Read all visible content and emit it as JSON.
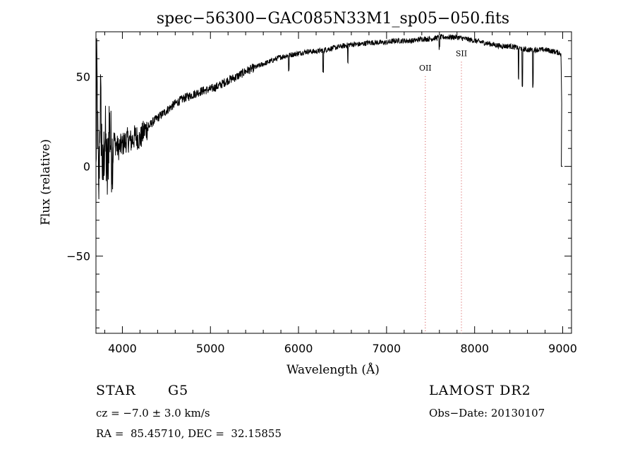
{
  "chart_data": {
    "type": "line",
    "title": "spec−56300−GAC085N33M1_sp05−050.fits",
    "xlabel": "Wavelength (Å)",
    "ylabel": "Flux (relative)",
    "xlim": [
      3700,
      9100
    ],
    "ylim": [
      -93,
      75
    ],
    "x_ticks": [
      4000,
      5000,
      6000,
      7000,
      8000,
      9000
    ],
    "x_tick_labels": [
      "4000",
      "5000",
      "6000",
      "7000",
      "8000",
      "9000"
    ],
    "y_ticks": [
      -50,
      0,
      50
    ],
    "y_tick_labels": [
      "−50",
      "0",
      "50"
    ],
    "grid": false,
    "legend": "none",
    "series": [
      {
        "x": [
          3700,
          3710,
          3730,
          3750,
          3780,
          3800,
          3830,
          3850,
          3880,
          3900,
          3950,
          4000,
          4050,
          4100,
          4150,
          4200,
          4250,
          4300,
          4350,
          4400,
          4500,
          4600,
          4700,
          4800,
          4900,
          5000,
          5100,
          5200,
          5300,
          5400,
          5500,
          5600,
          5700,
          5800,
          5900,
          6000,
          6100,
          6200,
          6300,
          6400,
          6500,
          6600,
          6700,
          6800,
          6900,
          7000,
          7100,
          7200,
          7300,
          7400,
          7500,
          7600,
          7700,
          7800,
          7900,
          8000,
          8100,
          8200,
          8300,
          8400,
          8500,
          8600,
          8700,
          8800,
          8900,
          8980,
          9000
        ],
        "y": [
          -5,
          55,
          -20,
          40,
          -10,
          20,
          -8,
          25,
          5,
          15,
          10,
          12,
          15,
          14,
          17,
          15,
          20,
          22,
          25,
          27,
          31,
          35,
          38,
          40,
          42,
          43,
          45,
          48,
          50,
          53,
          55,
          57,
          59,
          61,
          62,
          63,
          64,
          64,
          65,
          66,
          67,
          68,
          68,
          69,
          69,
          69,
          70,
          70,
          70,
          71,
          71,
          72,
          72,
          72,
          71,
          70,
          69,
          68,
          67,
          67,
          66,
          65,
          65,
          65,
          64,
          63,
          0
        ],
        "absorption_lines": [
          {
            "x": 6280,
            "depth": 12
          },
          {
            "x": 6560,
            "depth": 10
          },
          {
            "x": 5890,
            "depth": 8
          },
          {
            "x": 8498,
            "depth": 18
          },
          {
            "x": 8542,
            "depth": 22
          },
          {
            "x": 8662,
            "depth": 20
          },
          {
            "x": 7600,
            "depth": 6
          }
        ]
      }
    ],
    "line_markers": [
      {
        "label": "OII",
        "x": 7440,
        "y_label": 55,
        "color": "#d04040"
      },
      {
        "label": "SII",
        "x": 7850,
        "y_label": 63,
        "color": "#d04040"
      }
    ]
  },
  "info": {
    "class": "STAR",
    "subclass": "G5",
    "survey": "LAMOST DR2",
    "cz": "cz = −7.0 ± 3.0 km/s",
    "obs_date": "Obs−Date: 20130107",
    "coords": "RA =  85.45710, DEC =  32.15855"
  }
}
